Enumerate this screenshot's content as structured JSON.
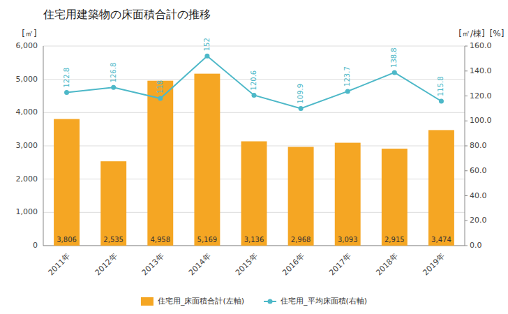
{
  "chart_data": {
    "type": "bar",
    "title": "住宅用建築物の床面積合計の推移",
    "categories": [
      "2011年",
      "2012年",
      "2013年",
      "2014年",
      "2015年",
      "2016年",
      "2017年",
      "2018年",
      "2019年"
    ],
    "series": [
      {
        "name": "住宅用_床面積合計(左軸)",
        "type": "bar",
        "color": "#f5a623",
        "values": [
          3806,
          2535,
          4958,
          5169,
          3136,
          2968,
          3093,
          2915,
          3474
        ],
        "value_labels": [
          "3,806",
          "2,535",
          "4,958",
          "5,169",
          "3,136",
          "2,968",
          "3,093",
          "2,915",
          "3,474"
        ]
      },
      {
        "name": "住宅用_平均床面積(右軸)",
        "type": "line",
        "axis": "y2",
        "color": "#4db8c8",
        "marker": "circle",
        "values": [
          122.8,
          126.8,
          118.0,
          152.0,
          120.6,
          109.9,
          123.7,
          138.8,
          115.8
        ]
      }
    ],
    "y_label": "[㎡]",
    "y2_label": "[㎡/棟]",
    "annotations": [
      "[%]"
    ],
    "ylim": [
      0,
      6000
    ],
    "yticks": [
      0,
      {
        "value": 1000,
        "label": "1,000"
      },
      {
        "value": 2000,
        "label": "2,000"
      },
      {
        "value": 3000,
        "label": "3,000"
      },
      {
        "value": 4000,
        "label": "4,000"
      },
      {
        "value": 5000,
        "label": "5,000"
      },
      {
        "value": 6000,
        "label": "6,000"
      }
    ],
    "y2lim": [
      0,
      160.0
    ],
    "y2ticks": [
      {
        "value": 0.0,
        "label": "0.0"
      },
      {
        "value": 20.0,
        "label": "20.0"
      },
      {
        "value": 40.0,
        "label": "40.0"
      },
      {
        "value": 60.0,
        "label": "60.0"
      },
      {
        "value": 80.0,
        "label": "80.0"
      },
      {
        "value": 100.0,
        "label": "100.0"
      },
      {
        "value": 120.0,
        "label": "120.0"
      },
      {
        "value": 140.0,
        "label": "140.0"
      },
      {
        "value": 160.0,
        "label": "160.0"
      }
    ],
    "grid": true,
    "legend": "bottom",
    "data_labels": true
  }
}
